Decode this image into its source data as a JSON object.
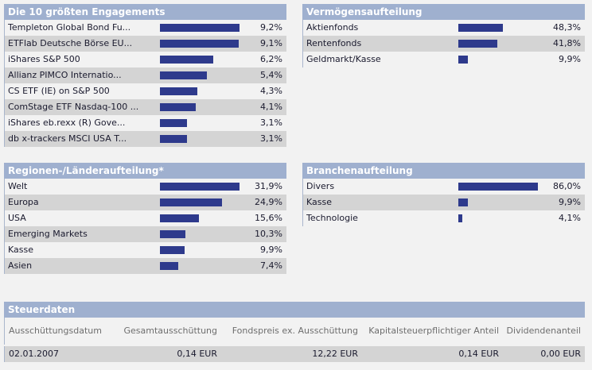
{
  "colors": {
    "header_bg": "#9fb0cf",
    "bar": "#2e3a8c",
    "alt_row": "#d4d4d4"
  },
  "engagements": {
    "title": "Die 10 größten Engagements",
    "items": [
      {
        "label": "Templeton Global Bond Fu...",
        "value": "9,2%",
        "pct": 9.2
      },
      {
        "label": "ETFlab Deutsche Börse EU...",
        "value": "9,1%",
        "pct": 9.1
      },
      {
        "label": "iShares S&P 500",
        "value": "6,2%",
        "pct": 6.2
      },
      {
        "label": "Allianz PIMCO Internatio...",
        "value": "5,4%",
        "pct": 5.4
      },
      {
        "label": "CS ETF (IE) on S&P 500",
        "value": "4,3%",
        "pct": 4.3
      },
      {
        "label": "ComStage ETF Nasdaq-100 ...",
        "value": "4,1%",
        "pct": 4.1
      },
      {
        "label": "iShares eb.rexx (R) Gove...",
        "value": "3,1%",
        "pct": 3.1
      },
      {
        "label": "db x-trackers MSCI USA T...",
        "value": "3,1%",
        "pct": 3.1
      }
    ]
  },
  "vermoegen": {
    "title": "Vermögensaufteilung",
    "items": [
      {
        "label": "Aktienfonds",
        "value": "48,3%",
        "pct": 48.3
      },
      {
        "label": "Rentenfonds",
        "value": "41,8%",
        "pct": 41.8
      },
      {
        "label": "Geldmarkt/Kasse",
        "value": "9,9%",
        "pct": 9.9
      }
    ]
  },
  "regionen": {
    "title": "Regionen-/Länderaufteilung*",
    "items": [
      {
        "label": "Welt",
        "value": "31,9%",
        "pct": 31.9
      },
      {
        "label": "Europa",
        "value": "24,9%",
        "pct": 24.9
      },
      {
        "label": "USA",
        "value": "15,6%",
        "pct": 15.6
      },
      {
        "label": "Emerging Markets",
        "value": "10,3%",
        "pct": 10.3
      },
      {
        "label": "Kasse",
        "value": "9,9%",
        "pct": 9.9
      },
      {
        "label": "Asien",
        "value": "7,4%",
        "pct": 7.4
      }
    ]
  },
  "branchen": {
    "title": "Branchenaufteilung",
    "items": [
      {
        "label": "Divers",
        "value": "86,0%",
        "pct": 86.0
      },
      {
        "label": "Kasse",
        "value": "9,9%",
        "pct": 9.9
      },
      {
        "label": "Technologie",
        "value": "4,1%",
        "pct": 4.1
      }
    ]
  },
  "steuer": {
    "title": "Steuerdaten",
    "headers": {
      "datum": "Ausschüttungsdatum",
      "gesamt": "Gesamtausschüttung",
      "fondspreis": "Fondspreis ex. Ausschüttung",
      "kapital": "Kapitalsteuerpflichtiger Anteil",
      "dividende": "Dividendenanteil"
    },
    "row": {
      "datum": "02.01.2007",
      "gesamt": "0,14 EUR",
      "fondspreis": "12,22 EUR",
      "kapital": "0,14 EUR",
      "dividende": "0,00 EUR"
    }
  }
}
